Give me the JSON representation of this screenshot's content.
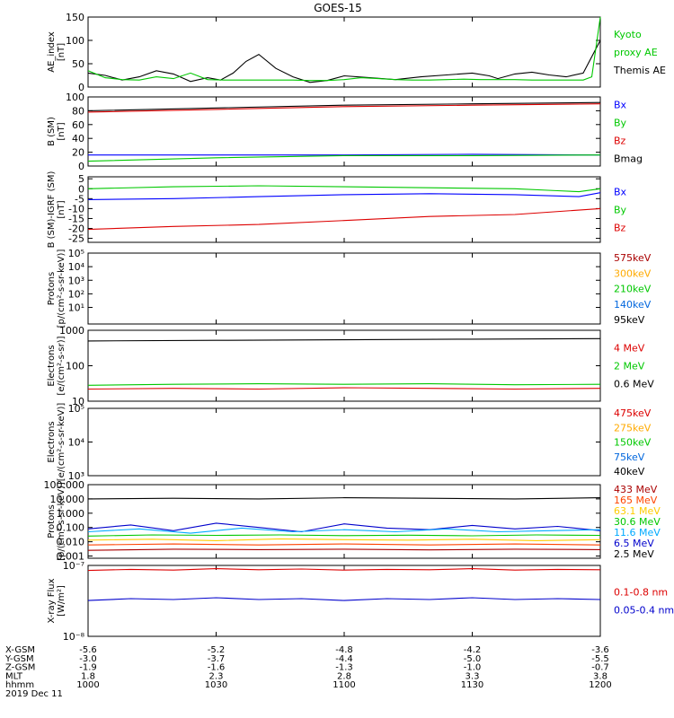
{
  "title": "GOES-15",
  "chart_data": [
    {
      "type": "line",
      "ylabel_lines": [
        "AE_index",
        "[nT]"
      ],
      "scale": "linear",
      "ylim": [
        0,
        150
      ],
      "yticks": [
        "0",
        "50",
        "100",
        "150"
      ],
      "tick_values": [
        0,
        50,
        100,
        150
      ],
      "legend": [
        {
          "label": "Kyoto",
          "color": "#00c800"
        },
        {
          "label": "proxy AE",
          "color": "#00c800"
        },
        {
          "label": "Themis AE",
          "color": "#000000"
        }
      ],
      "series": [
        {
          "name": "Themis AE",
          "color": "#000000",
          "x": [
            0,
            4,
            8,
            12,
            16,
            20,
            24,
            28,
            31,
            34,
            37,
            40,
            44,
            48,
            52,
            56,
            60,
            66,
            72,
            78,
            84,
            90,
            94,
            96,
            100,
            104,
            108,
            112,
            116,
            120
          ],
          "y": [
            30,
            25,
            15,
            22,
            35,
            28,
            12,
            20,
            15,
            30,
            55,
            70,
            40,
            22,
            10,
            14,
            24,
            20,
            16,
            22,
            26,
            30,
            24,
            18,
            28,
            32,
            26,
            22,
            30,
            100
          ]
        },
        {
          "name": "Kyoto proxy AE",
          "color": "#00c800",
          "x": [
            0,
            4,
            8,
            12,
            16,
            20,
            24,
            28,
            32,
            36,
            40,
            44,
            48,
            52,
            56,
            60,
            64,
            68,
            72,
            76,
            80,
            84,
            88,
            92,
            96,
            100,
            104,
            108,
            112,
            116,
            118,
            120
          ],
          "y": [
            35,
            20,
            16,
            15,
            22,
            18,
            30,
            16,
            15,
            15,
            15,
            15,
            15,
            14,
            14,
            16,
            20,
            18,
            16,
            15,
            15,
            16,
            17,
            16,
            16,
            16,
            15,
            15,
            15,
            15,
            22,
            150
          ]
        }
      ]
    },
    {
      "type": "line",
      "ylabel_lines": [
        "B (SM)",
        "[nT]"
      ],
      "scale": "linear",
      "ylim": [
        0,
        100
      ],
      "yticks": [
        "0",
        "20",
        "40",
        "60",
        "80",
        "100"
      ],
      "tick_values": [
        0,
        20,
        40,
        60,
        80,
        100
      ],
      "legend": [
        {
          "label": "Bx",
          "color": "#0000ff"
        },
        {
          "label": "By",
          "color": "#00c800"
        },
        {
          "label": "Bz",
          "color": "#dd0000"
        },
        {
          "label": "Bmag",
          "color": "#000000"
        }
      ],
      "series": [
        {
          "name": "Bx",
          "color": "#0000ff",
          "x": [
            0,
            30,
            60,
            90,
            120
          ],
          "y": [
            16,
            16,
            16,
            17,
            16
          ]
        },
        {
          "name": "By",
          "color": "#00c800",
          "x": [
            0,
            30,
            60,
            90,
            120
          ],
          "y": [
            7,
            12,
            15,
            15,
            16
          ]
        },
        {
          "name": "Bz",
          "color": "#dd0000",
          "x": [
            0,
            30,
            60,
            90,
            120
          ],
          "y": [
            78,
            82,
            86,
            88,
            90
          ]
        },
        {
          "name": "Bmag",
          "color": "#000000",
          "x": [
            0,
            30,
            60,
            90,
            120
          ],
          "y": [
            80,
            84,
            88,
            90,
            92
          ]
        }
      ]
    },
    {
      "type": "line",
      "ylabel_lines": [
        "B (SM)-IGRF (SM)",
        "[nT]"
      ],
      "scale": "linear",
      "ylim": [
        -27,
        6
      ],
      "yticks": [
        "5",
        "0",
        "-5",
        "-10",
        "-15",
        "-20",
        "-25"
      ],
      "tick_values": [
        5,
        0,
        -5,
        -10,
        -15,
        -20,
        -25
      ],
      "legend": [
        {
          "label": "Bx",
          "color": "#0000ff"
        },
        {
          "label": "By",
          "color": "#00c800"
        },
        {
          "label": "Bz",
          "color": "#dd0000"
        }
      ],
      "series": [
        {
          "name": "Bx",
          "color": "#0000ff",
          "x": [
            0,
            20,
            40,
            60,
            80,
            100,
            115,
            120
          ],
          "y": [
            -5.5,
            -5,
            -4,
            -3,
            -2.5,
            -3,
            -4,
            -2
          ]
        },
        {
          "name": "By",
          "color": "#00c800",
          "x": [
            0,
            20,
            40,
            60,
            80,
            100,
            110,
            115,
            120
          ],
          "y": [
            0,
            1,
            1.5,
            1,
            0.5,
            0,
            -1,
            -1.5,
            0
          ]
        },
        {
          "name": "Bz",
          "color": "#dd0000",
          "x": [
            0,
            20,
            40,
            60,
            80,
            100,
            120
          ],
          "y": [
            -20.5,
            -19,
            -18,
            -16,
            -14,
            -13,
            -10
          ]
        }
      ]
    },
    {
      "type": "line",
      "ylabel_lines": [
        "Protons",
        "[p/(cm²-s-sr-keV)]"
      ],
      "scale": "log",
      "ylim": [
        0.6,
        100000
      ],
      "yticks": [
        "10¹",
        "10²",
        "10³",
        "10⁴",
        "10⁵"
      ],
      "tick_values": [
        10,
        100,
        1000,
        10000,
        100000
      ],
      "legend": [
        {
          "label": "575keV",
          "color": "#aa0000"
        },
        {
          "label": "300keV",
          "color": "#ffaa00"
        },
        {
          "label": "210keV",
          "color": "#00c800"
        },
        {
          "label": "140keV",
          "color": "#0066dd"
        },
        {
          "label": "95keV",
          "color": "#000000"
        }
      ],
      "series": []
    },
    {
      "type": "line",
      "ylabel_lines": [
        "Electrons",
        "[e/(cm²-s-sr)]"
      ],
      "scale": "log",
      "ylim": [
        10,
        1000
      ],
      "yticks": [
        "10",
        "100",
        "1000"
      ],
      "tick_values": [
        10,
        100,
        1000
      ],
      "legend": [
        {
          "label": "4 MeV",
          "color": "#dd0000"
        },
        {
          "label": "2 MeV",
          "color": "#00c800"
        },
        {
          "label": "0.6 MeV",
          "color": "#000000"
        }
      ],
      "series": [
        {
          "name": "0.6 MeV",
          "color": "#000000",
          "x": [
            0,
            30,
            60,
            90,
            120
          ],
          "y": [
            500,
            520,
            540,
            560,
            580
          ]
        },
        {
          "name": "2 MeV",
          "color": "#00c800",
          "x": [
            0,
            20,
            40,
            60,
            80,
            100,
            120
          ],
          "y": [
            28,
            30,
            31,
            30,
            31,
            29,
            30
          ]
        },
        {
          "name": "4 MeV",
          "color": "#dd0000",
          "x": [
            0,
            20,
            40,
            60,
            80,
            100,
            120
          ],
          "y": [
            22,
            23,
            22,
            24,
            23,
            22,
            23
          ]
        }
      ]
    },
    {
      "type": "line",
      "ylabel_lines": [
        "Electrons",
        "[e/(cm²-s-sr-keV)]"
      ],
      "scale": "log",
      "ylim": [
        1000,
        100000
      ],
      "yticks": [
        "10³",
        "10⁴",
        "10⁵"
      ],
      "tick_values": [
        1000,
        10000,
        100000
      ],
      "legend": [
        {
          "label": "475keV",
          "color": "#dd0000"
        },
        {
          "label": "275keV",
          "color": "#ffaa00"
        },
        {
          "label": "150keV",
          "color": "#00c800"
        },
        {
          "label": "75keV",
          "color": "#0066dd"
        },
        {
          "label": "40keV",
          "color": "#000000"
        }
      ],
      "series": []
    },
    {
      "type": "line",
      "ylabel_lines": [
        "Protons",
        "[p/(cm²-s-sr-keV)]"
      ],
      "scale": "log",
      "ylim": [
        0.0007,
        100
      ],
      "yticks": [
        "0.001",
        "0.010",
        "0.100",
        "1.000",
        "10.000",
        "100.000"
      ],
      "tick_values": [
        0.001,
        0.01,
        0.1,
        1,
        10,
        100
      ],
      "legend": [
        {
          "label": "433 MeV",
          "color": "#aa0000"
        },
        {
          "label": "165 MeV",
          "color": "#ff4400"
        },
        {
          "label": "63.1 MeV",
          "color": "#ffcc00"
        },
        {
          "label": "30.6 MeV",
          "color": "#00c800"
        },
        {
          "label": "11.6 MeV",
          "color": "#00aaff"
        },
        {
          "label": "6.5 MeV",
          "color": "#0000cc"
        },
        {
          "label": "2.5 MeV",
          "color": "#000000"
        }
      ],
      "series": [
        {
          "name": "2.5 MeV",
          "color": "#000000",
          "x": [
            0,
            20,
            40,
            60,
            80,
            100,
            120
          ],
          "y": [
            10,
            11,
            10,
            12,
            11,
            10,
            12
          ]
        },
        {
          "name": "6.5 MeV",
          "color": "#0000cc",
          "x": [
            0,
            10,
            20,
            30,
            40,
            50,
            60,
            70,
            80,
            90,
            100,
            110,
            120
          ],
          "y": [
            0.08,
            0.15,
            0.06,
            0.2,
            0.1,
            0.05,
            0.18,
            0.09,
            0.07,
            0.14,
            0.08,
            0.12,
            0.06
          ]
        },
        {
          "name": "11.6 MeV",
          "color": "#00aaff",
          "x": [
            0,
            12,
            24,
            36,
            48,
            60,
            72,
            84,
            96,
            108,
            120
          ],
          "y": [
            0.05,
            0.08,
            0.04,
            0.09,
            0.05,
            0.07,
            0.05,
            0.08,
            0.05,
            0.06,
            0.07
          ]
        },
        {
          "name": "30.6 MeV",
          "color": "#00c800",
          "x": [
            0,
            15,
            30,
            45,
            60,
            75,
            90,
            105,
            120
          ],
          "y": [
            0.025,
            0.03,
            0.028,
            0.03,
            0.027,
            0.029,
            0.026,
            0.03,
            0.028
          ]
        },
        {
          "name": "63.1 MeV",
          "color": "#ffcc00",
          "x": [
            0,
            15,
            30,
            45,
            60,
            75,
            90,
            105,
            120
          ],
          "y": [
            0.013,
            0.015,
            0.012,
            0.016,
            0.014,
            0.013,
            0.015,
            0.012,
            0.014
          ]
        },
        {
          "name": "165 MeV",
          "color": "#ff4400",
          "x": [
            0,
            20,
            40,
            60,
            80,
            100,
            120
          ],
          "y": [
            0.006,
            0.007,
            0.006,
            0.007,
            0.006,
            0.007,
            0.006
          ]
        },
        {
          "name": "433 MeV",
          "color": "#aa0000",
          "x": [
            0,
            20,
            40,
            60,
            80,
            100,
            120
          ],
          "y": [
            0.0025,
            0.003,
            0.0028,
            0.003,
            0.0027,
            0.003,
            0.0028
          ]
        }
      ]
    },
    {
      "type": "line",
      "ylabel_lines": [
        "X-ray Flux",
        "[W/m²]"
      ],
      "scale": "log",
      "ylim": [
        1e-08,
        1e-07
      ],
      "yticks": [
        "10⁻⁸",
        "10⁻⁷"
      ],
      "tick_values": [
        1e-08,
        1e-07
      ],
      "legend": [
        {
          "label": "0.1-0.8 nm",
          "color": "#dd0000"
        },
        {
          "label": "0.05-0.4 nm",
          "color": "#0000cc"
        }
      ],
      "series": [
        {
          "name": "0.1-0.8 nm",
          "color": "#dd0000",
          "x": [
            0,
            10,
            20,
            30,
            40,
            50,
            60,
            70,
            80,
            90,
            100,
            110,
            120
          ],
          "y": [
            8.5e-08,
            8.8e-08,
            8.6e-08,
            9e-08,
            8.7e-08,
            8.9e-08,
            8.6e-08,
            8.8e-08,
            8.7e-08,
            9e-08,
            8.6e-08,
            8.8e-08,
            8.7e-08
          ]
        },
        {
          "name": "0.05-0.4 nm",
          "color": "#0000cc",
          "x": [
            0,
            10,
            20,
            30,
            40,
            50,
            60,
            70,
            80,
            90,
            100,
            110,
            120
          ],
          "y": [
            3.2e-08,
            3.4e-08,
            3.3e-08,
            3.5e-08,
            3.3e-08,
            3.4e-08,
            3.2e-08,
            3.4e-08,
            3.3e-08,
            3.5e-08,
            3.3e-08,
            3.4e-08,
            3.3e-08
          ]
        }
      ]
    }
  ],
  "x_axis": {
    "xlim": [
      0,
      120
    ],
    "tick_x": [
      0,
      30,
      60,
      90,
      120
    ],
    "rows": [
      {
        "label": "X-GSM",
        "values": [
          "-5.6",
          "-5.2",
          "-4.8",
          "-4.2",
          "-3.6"
        ]
      },
      {
        "label": "Y-GSM",
        "values": [
          "-3.0",
          "-3.7",
          "-4.4",
          "-5.0",
          "-5.5"
        ]
      },
      {
        "label": "Z-GSM",
        "values": [
          "-1.9",
          "-1.6",
          "-1.3",
          "-1.0",
          "-0.7"
        ]
      },
      {
        "label": "MLT",
        "values": [
          "1.8",
          "2.3",
          "2.8",
          "3.3",
          "3.8"
        ]
      },
      {
        "label": "hhmm",
        "values": [
          "1000",
          "1030",
          "1100",
          "1130",
          "1200"
        ]
      }
    ],
    "date": "2019 Dec 11"
  }
}
